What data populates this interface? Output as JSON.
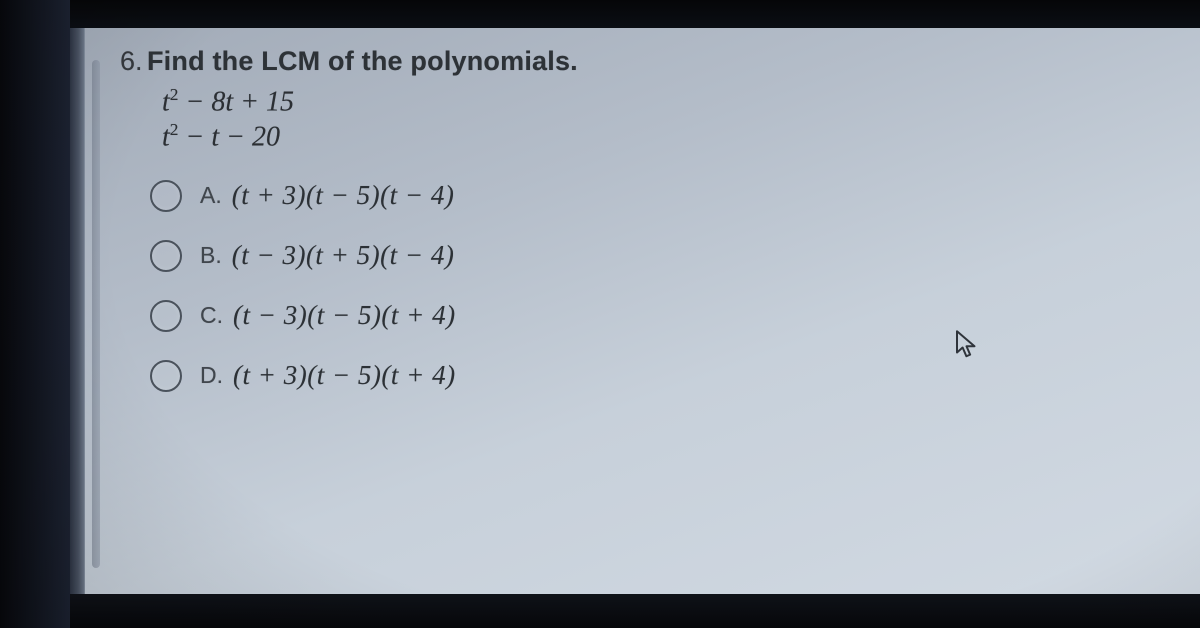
{
  "question": {
    "number": "6.",
    "prompt": "Find the LCM of the polynomials.",
    "poly1_html": "t<sup>2</sup> − 8t + 15",
    "poly2_html": "t<sup>2</sup> − t − 20"
  },
  "options": [
    {
      "letter": "A.",
      "math_html": "(t + 3)(t − 5)(t − 4)"
    },
    {
      "letter": "B.",
      "math_html": "(t − 3)(t + 5)(t − 4)"
    },
    {
      "letter": "C.",
      "math_html": "(t − 3)(t − 5)(t + 4)"
    },
    {
      "letter": "D.",
      "math_html": "(t + 3)(t − 5)(t + 4)"
    }
  ],
  "colors": {
    "text": "#2a2e33",
    "radio_border": "#4a525c",
    "bg_top": "#9fa8b5",
    "bg_bottom": "#d2dae3",
    "letterbox": "#07080c"
  }
}
